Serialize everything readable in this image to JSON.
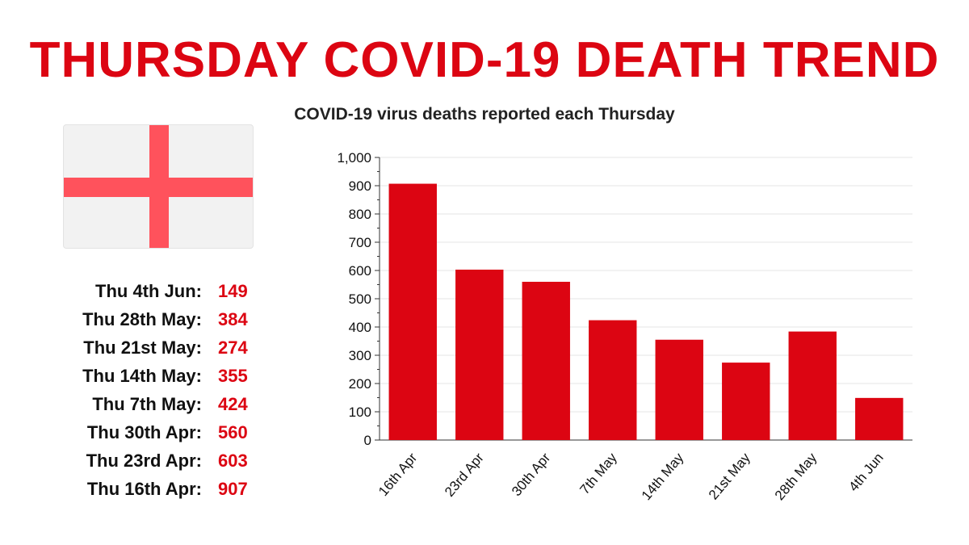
{
  "title": "THURSDAY COVID-19 DEATH TREND",
  "colors": {
    "accent": "#dc0512",
    "flag_cross": "#ff525c",
    "flag_bg": "#f2f2f2"
  },
  "flag": {
    "icon": "england-flag-icon"
  },
  "daily_list": [
    {
      "label": "Thu 4th Jun:",
      "value": "149"
    },
    {
      "label": "Thu 28th May:",
      "value": "384"
    },
    {
      "label": "Thu 21st May:",
      "value": "274"
    },
    {
      "label": "Thu 14th May:",
      "value": "355"
    },
    {
      "label": "Thu 7th May:",
      "value": "424"
    },
    {
      "label": "Thu 30th Apr:",
      "value": "560"
    },
    {
      "label": "Thu 23rd Apr:",
      "value": "603"
    },
    {
      "label": "Thu 16th Apr:",
      "value": "907"
    }
  ],
  "chart_data": {
    "type": "bar",
    "title": "COVID-19 virus deaths reported each Thursday",
    "categories": [
      "16th Apr",
      "23rd Apr",
      "30th Apr",
      "7th May",
      "14th May",
      "21st May",
      "28th May",
      "4th Jun"
    ],
    "values": [
      907,
      603,
      560,
      424,
      355,
      274,
      384,
      149
    ],
    "ylim": [
      0,
      1000
    ],
    "yticks": [
      0,
      100,
      200,
      300,
      400,
      500,
      600,
      700,
      800,
      900,
      1000
    ],
    "ytick_labels": [
      "0",
      "100",
      "200",
      "300",
      "400",
      "500",
      "600",
      "700",
      "800",
      "900",
      "1,000"
    ],
    "xlabel": "",
    "ylabel": "",
    "grid": true,
    "bar_color": "#dc0512"
  }
}
